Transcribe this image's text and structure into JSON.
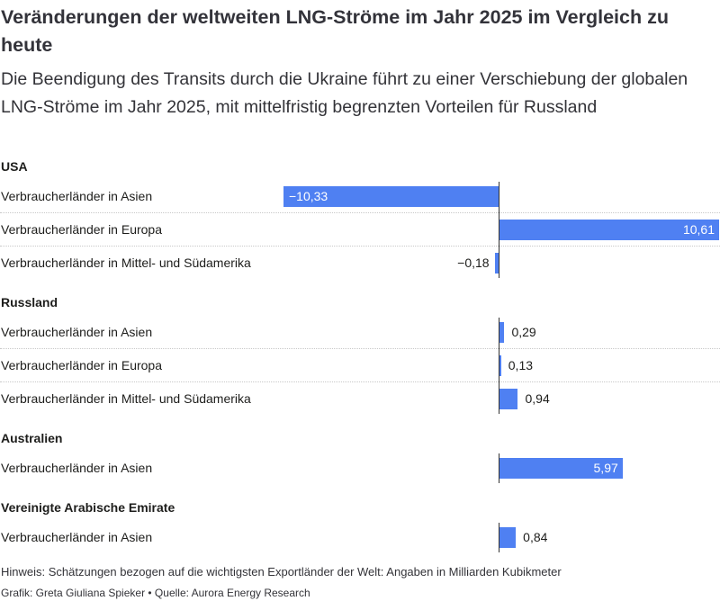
{
  "header": {
    "title": "Veränderungen der weltweiten LNG-Ströme im Jahr 2025 im Vergleich zu heute",
    "subtitle": "Die Beendigung des Transits durch die Ukraine führt zu einer Verschiebung der globalen LNG-Ströme im Jahr 2025, mit mittelfristig begrenzten Vorteilen für Russland"
  },
  "chart_data": {
    "type": "bar",
    "orientation": "horizontal",
    "xlim": [
      -10.33,
      10.61
    ],
    "bar_color": "#4f80f2",
    "groups": [
      {
        "name": "USA",
        "rows": [
          {
            "label": "Verbraucherländer in Asien",
            "value": -10.33,
            "value_label": "−10,33"
          },
          {
            "label": "Verbraucherländer in Europa",
            "value": 10.61,
            "value_label": "10,61"
          },
          {
            "label": "Verbraucherländer in Mittel- und Südamerika",
            "value": -0.18,
            "value_label": "−0,18"
          }
        ]
      },
      {
        "name": "Russland",
        "rows": [
          {
            "label": "Verbraucherländer in Asien",
            "value": 0.29,
            "value_label": "0,29"
          },
          {
            "label": "Verbraucherländer in Europa",
            "value": 0.13,
            "value_label": "0,13"
          },
          {
            "label": "Verbraucherländer in Mittel- und Südamerika",
            "value": 0.94,
            "value_label": "0,94"
          }
        ]
      },
      {
        "name": "Australien",
        "rows": [
          {
            "label": "Verbraucherländer in Asien",
            "value": 5.97,
            "value_label": "5,97"
          }
        ]
      },
      {
        "name": "Vereinigte Arabische Emirate",
        "rows": [
          {
            "label": "Verbraucherländer in Asien",
            "value": 0.84,
            "value_label": "0,84"
          }
        ]
      }
    ]
  },
  "footer": {
    "note": "Hinweis: Schätzungen bezogen auf die wichtigsten Exportländer der Welt: Angaben in Milliarden Kubikmeter",
    "credits": "Grafik: Greta Giuliana Spieker • Quelle: Aurora Energy Research"
  }
}
